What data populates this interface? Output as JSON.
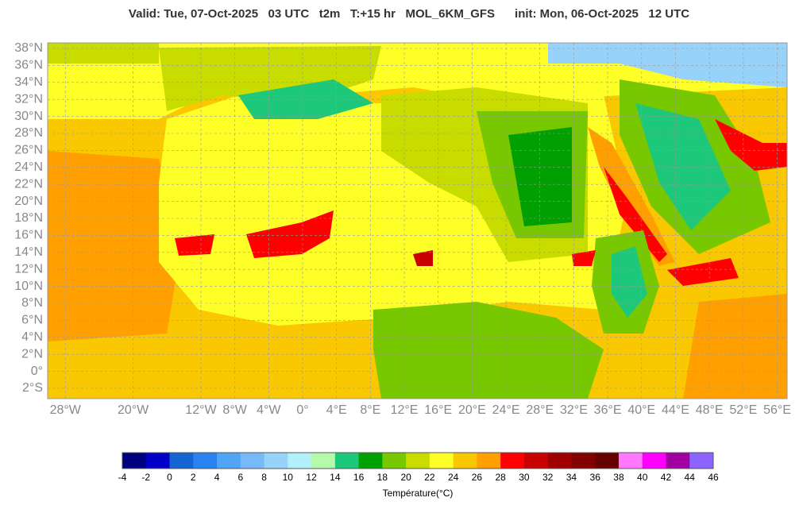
{
  "header": {
    "title": "Valid: Tue, 07-Oct-2025   03 UTC   t2m   T:+15 hr   MOL_6KM_GFS      init: Mon, 06-Oct-2025   12 UTC"
  },
  "map": {
    "lat_ticks": [
      {
        "value": 38,
        "label": "38°N"
      },
      {
        "value": 36,
        "label": "36°N"
      },
      {
        "value": 34,
        "label": "34°N"
      },
      {
        "value": 32,
        "label": "32°N"
      },
      {
        "value": 30,
        "label": "30°N"
      },
      {
        "value": 28,
        "label": "28°N"
      },
      {
        "value": 26,
        "label": "26°N"
      },
      {
        "value": 24,
        "label": "24°N"
      },
      {
        "value": 22,
        "label": "22°N"
      },
      {
        "value": 20,
        "label": "20°N"
      },
      {
        "value": 18,
        "label": "18°N"
      },
      {
        "value": 16,
        "label": "16°N"
      },
      {
        "value": 14,
        "label": "14°N"
      },
      {
        "value": 12,
        "label": "12°N"
      },
      {
        "value": 10,
        "label": "10°N"
      },
      {
        "value": 8,
        "label": "8°N"
      },
      {
        "value": 6,
        "label": "6°N"
      },
      {
        "value": 4,
        "label": "4°N"
      },
      {
        "value": 2,
        "label": "2°N"
      },
      {
        "value": 0,
        "label": "0°"
      },
      {
        "value": -2,
        "label": "2°S"
      }
    ],
    "lon_ticks": [
      {
        "value": -28,
        "label": "28°W"
      },
      {
        "value": -20,
        "label": "20°W"
      },
      {
        "value": -12,
        "label": "12°W"
      },
      {
        "value": -8,
        "label": "8°W"
      },
      {
        "value": -4,
        "label": "4°W"
      },
      {
        "value": 0,
        "label": "0°"
      },
      {
        "value": 4,
        "label": "4°E"
      },
      {
        "value": 8,
        "label": "8°E"
      },
      {
        "value": 12,
        "label": "12°E"
      },
      {
        "value": 16,
        "label": "16°E"
      },
      {
        "value": 20,
        "label": "20°E"
      },
      {
        "value": 24,
        "label": "24°E"
      },
      {
        "value": 28,
        "label": "28°E"
      },
      {
        "value": 32,
        "label": "32°E"
      },
      {
        "value": 36,
        "label": "36°E"
      },
      {
        "value": 40,
        "label": "40°E"
      },
      {
        "value": 44,
        "label": "44°E"
      },
      {
        "value": 48,
        "label": "48°E"
      },
      {
        "value": 52,
        "label": "52°E"
      },
      {
        "value": 56,
        "label": "56°E"
      }
    ]
  },
  "colorbar": {
    "ticks": [
      -4,
      -2,
      0,
      2,
      4,
      6,
      8,
      10,
      12,
      14,
      16,
      18,
      20,
      22,
      24,
      26,
      28,
      30,
      32,
      34,
      36,
      38,
      40,
      42,
      44,
      46
    ],
    "colors": [
      "#00007f",
      "#0000c8",
      "#1464d2",
      "#2882f0",
      "#50a5f5",
      "#78b9fa",
      "#96d2fa",
      "#b4f0fa",
      "#b4faaa",
      "#1ec87a",
      "#00a000",
      "#78c800",
      "#c8dc00",
      "#ffff28",
      "#fac800",
      "#ffa000",
      "#ff0000",
      "#c80000",
      "#a00000",
      "#820000",
      "#640000",
      "#ff78ff",
      "#ff00ff",
      "#a000a0",
      "#8c64ff"
    ],
    "label": "Température(°C)"
  }
}
